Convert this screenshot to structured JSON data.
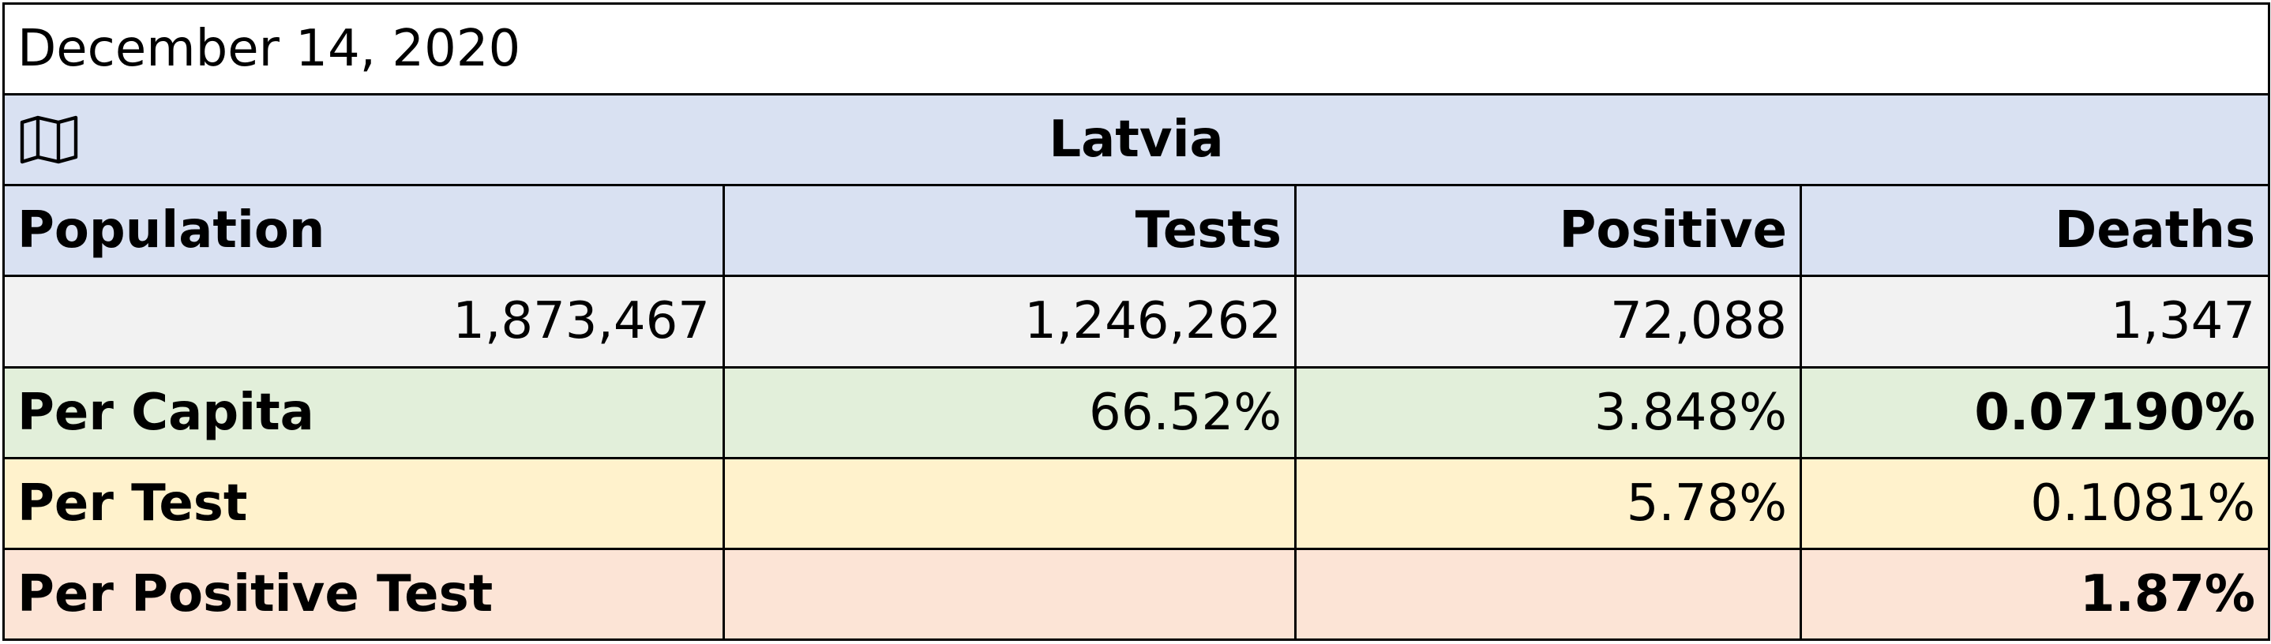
{
  "date": "December 14, 2020",
  "country": "Latvia",
  "icons": {
    "map": "map-icon"
  },
  "headers": {
    "population": "Population",
    "tests": "Tests",
    "positive": "Positive",
    "deaths": "Deaths"
  },
  "values": {
    "population": "1,873,467",
    "tests": "1,246,262",
    "positive": "72,088",
    "deaths": "1,347"
  },
  "per_capita": {
    "label": "Per Capita",
    "tests": "66.52%",
    "positive": "3.848%",
    "deaths": "0.07190%"
  },
  "per_test": {
    "label": "Per Test",
    "positive": "5.78%",
    "deaths": "0.1081%"
  },
  "per_positive_test": {
    "label": "Per Positive Test",
    "deaths": "1.87%"
  },
  "colors": {
    "header_bg": "#d9e1f2",
    "values_bg": "#f2f2f2",
    "per_capita_bg": "#e2efda",
    "per_test_bg": "#fff2cc",
    "per_positive_bg": "#fce4d6"
  }
}
